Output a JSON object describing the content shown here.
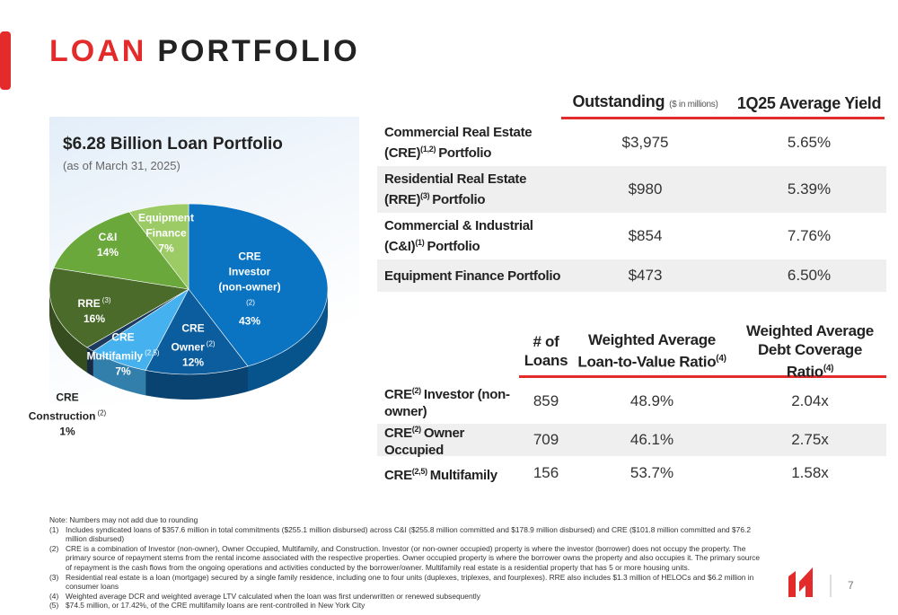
{
  "header": {
    "title_accent": "LOAN",
    "title_rest": "PORTFOLIO"
  },
  "chart_data": {
    "type": "pie",
    "title": "$6.28 Billion Loan Portfolio",
    "subtitle": "(as of March 31, 2025)",
    "categories": [
      "CRE Investor (non-owner)",
      "CRE Owner",
      "CRE Multifamily",
      "CRE Construction",
      "RRE",
      "C&I",
      "Equipment Finance"
    ],
    "category_notes": [
      "(2)",
      "(2)",
      "(2,5)",
      "(2)",
      "(3)",
      null,
      null
    ],
    "values": [
      43,
      12,
      7,
      1,
      16,
      14,
      7
    ],
    "value_labels": [
      "43%",
      "12%",
      "7%",
      "1%",
      "16%",
      "14%",
      "7%"
    ],
    "colors": [
      "#0a74c2",
      "#0c5d9e",
      "#45b1ee",
      "#1d3b5e",
      "#4b6b2b",
      "#6aa83c",
      "#9ccb66"
    ]
  },
  "table1": {
    "columns": [
      {
        "title": "Outstanding",
        "unit": "($ in millions)"
      },
      {
        "title": "1Q25 Average Yield"
      }
    ],
    "rows": [
      {
        "label": [
          "Commercial Real Estate (CRE)",
          "(1,2)",
          "Portfolio"
        ],
        "cells": [
          "$3,975",
          "5.65%"
        ]
      },
      {
        "label": [
          "Residential Real Estate (RRE)",
          "(3)",
          "Portfolio"
        ],
        "cells": [
          "$980",
          "5.39%"
        ]
      },
      {
        "label": [
          "Commercial & Industrial (C&I)",
          "(1)",
          "Portfolio"
        ],
        "cells": [
          "$854",
          "7.76%"
        ]
      },
      {
        "label": [
          "Equipment Finance Portfolio"
        ],
        "cells": [
          "$473",
          "6.50%"
        ]
      }
    ]
  },
  "table2": {
    "columns": [
      {
        "title": "# of Loans"
      },
      {
        "title": "Weighted Average Loan-to-Value Ratio",
        "note": "(4)"
      },
      {
        "title": "Weighted Average Debt Coverage Ratio",
        "note": "(4)"
      }
    ],
    "rows": [
      {
        "label": [
          "CRE",
          "(2)",
          "Investor (non-owner)"
        ],
        "cells": [
          "859",
          "48.9%",
          "2.04x"
        ]
      },
      {
        "label": [
          "CRE",
          "(2)",
          "Owner Occupied"
        ],
        "cells": [
          "709",
          "46.1%",
          "2.75x"
        ]
      },
      {
        "label": [
          "CRE",
          "(2,5)",
          "Multifamily"
        ],
        "cells": [
          "156",
          "53.7%",
          "1.58x"
        ]
      }
    ]
  },
  "notes": {
    "intro": "Note: Numbers may not add due to rounding",
    "items": [
      {
        "marker": "(1)",
        "text": "Includes syndicated loans of $357.6 million in total commitments ($255.1 million disbursed) across C&I ($255.8 million committed and $178.9 million disbursed) and CRE ($101.8 million committed and $76.2 million disbursed)"
      },
      {
        "marker": "(2)",
        "text": "CRE is a combination of Investor (non-owner), Owner Occupied, Multifamily, and Construction. Investor (or non-owner occupied) property is where the investor (borrower) does not occupy the property. The primary source of repayment stems from the rental income associated with the respective properties. Owner occupied property is where the borrower owns the property and also occupies it. The primary source of repayment is the cash flows from the ongoing operations and activities conducted by the borrower/owner. Multifamily real estate is a residential property that has 5 or more housing units."
      },
      {
        "marker": "(3)",
        "text": "Residential real estate is a loan (mortgage) secured by a single family residence, including one to four units (duplexes, triplexes, and fourplexes). RRE also includes $1.3 million of HELOCs and $6.2 million in consumer loans"
      },
      {
        "marker": "(4)",
        "text": "Weighted average DCR and weighted average LTV calculated when the loan was first underwritten or renewed subsequently"
      },
      {
        "marker": "(5)",
        "text": "$74.5 million, or 17.42%, of the CRE multifamily loans are rent-controlled in New York City"
      }
    ]
  },
  "page_number": "7"
}
